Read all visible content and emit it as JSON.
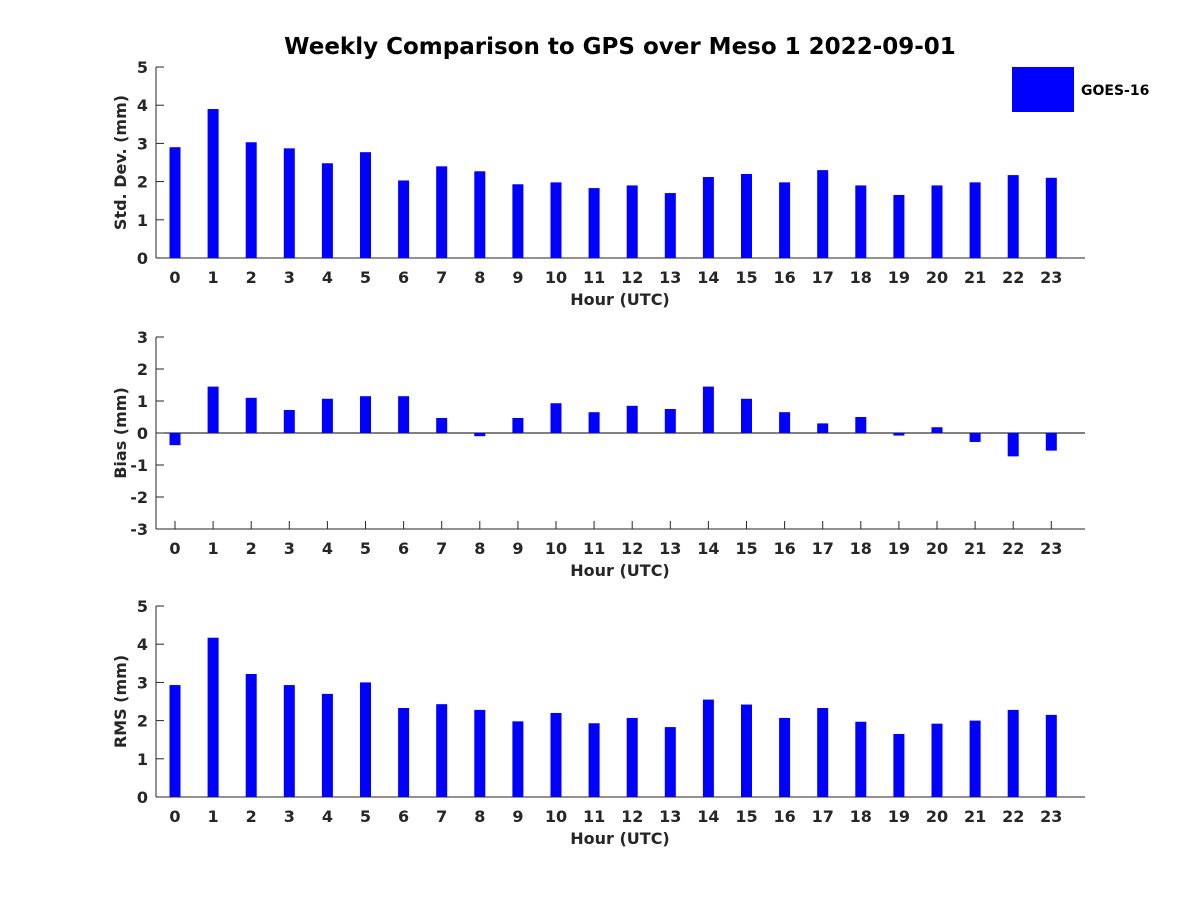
{
  "colors": {
    "bar": "#0000ff",
    "axis": "#262626",
    "background": "#ffffff"
  },
  "chart_data": {
    "title": "Weekly Comparison to GPS over Meso 1 2022-09-01",
    "legend": {
      "label": "GOES-16",
      "placement": "top-right"
    },
    "panels": [
      {
        "type": "bar",
        "series_name": "GOES-16",
        "xlabel": "Hour (UTC)",
        "ylabel": "Std. Dev. (mm)",
        "ylim": [
          0,
          5
        ],
        "yticks": [
          0,
          1,
          2,
          3,
          4,
          5
        ],
        "categories": [
          "0",
          "1",
          "2",
          "3",
          "4",
          "5",
          "6",
          "7",
          "8",
          "9",
          "10",
          "11",
          "12",
          "13",
          "14",
          "15",
          "16",
          "17",
          "18",
          "19",
          "20",
          "21",
          "22",
          "23"
        ],
        "values": [
          2.9,
          3.9,
          3.03,
          2.87,
          2.48,
          2.77,
          2.03,
          2.4,
          2.27,
          1.93,
          1.98,
          1.83,
          1.9,
          1.7,
          2.12,
          2.2,
          1.98,
          2.3,
          1.9,
          1.65,
          1.9,
          1.98,
          2.17,
          2.1
        ]
      },
      {
        "type": "bar",
        "series_name": "GOES-16",
        "xlabel": "Hour (UTC)",
        "ylabel": "Bias (mm)",
        "ylim": [
          -3,
          3
        ],
        "yticks": [
          -3,
          -2,
          -1,
          0,
          1,
          2,
          3
        ],
        "categories": [
          "0",
          "1",
          "2",
          "3",
          "4",
          "5",
          "6",
          "7",
          "8",
          "9",
          "10",
          "11",
          "12",
          "13",
          "14",
          "15",
          "16",
          "17",
          "18",
          "19",
          "20",
          "21",
          "22",
          "23"
        ],
        "values": [
          -0.38,
          1.45,
          1.1,
          0.72,
          1.07,
          1.15,
          1.15,
          0.47,
          -0.1,
          0.47,
          0.93,
          0.65,
          0.85,
          0.75,
          1.45,
          1.07,
          0.65,
          0.3,
          0.5,
          -0.08,
          0.18,
          -0.28,
          -0.73,
          -0.55
        ]
      },
      {
        "type": "bar",
        "series_name": "GOES-16",
        "xlabel": "Hour (UTC)",
        "ylabel": "RMS (mm)",
        "ylim": [
          0,
          5
        ],
        "yticks": [
          0,
          1,
          2,
          3,
          4,
          5
        ],
        "categories": [
          "0",
          "1",
          "2",
          "3",
          "4",
          "5",
          "6",
          "7",
          "8",
          "9",
          "10",
          "11",
          "12",
          "13",
          "14",
          "15",
          "16",
          "17",
          "18",
          "19",
          "20",
          "21",
          "22",
          "23"
        ],
        "values": [
          2.93,
          4.17,
          3.22,
          2.93,
          2.7,
          3.0,
          2.33,
          2.43,
          2.28,
          1.98,
          2.2,
          1.93,
          2.07,
          1.83,
          2.55,
          2.42,
          2.07,
          2.33,
          1.97,
          1.65,
          1.92,
          2.0,
          2.28,
          2.15
        ]
      }
    ]
  }
}
